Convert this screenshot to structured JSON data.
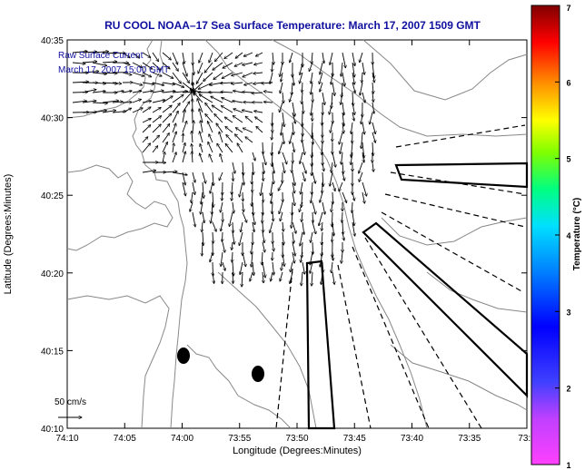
{
  "title": "RU COOL  NOAA–17  Sea Surface Temperature:  March 17, 2007 1509 GMT",
  "legend_text": {
    "line1": "Raw Surface Current",
    "line2": "March 17, 2007 15:00 GMT"
  },
  "scale_label": "50 cm/s",
  "xlabel": "Longitude (Degrees:Minutes)",
  "ylabel": "Latitude (Degrees:Minutes)",
  "x_ticks": [
    "74:10",
    "74:05",
    "74:00",
    "73:55",
    "73:50",
    "73:45",
    "73:40",
    "73:35",
    "73:3"
  ],
  "y_ticks": [
    "40:35",
    "40:30",
    "40:25",
    "40:20",
    "40:15",
    "40:10"
  ],
  "colorbar": {
    "label": "Temperature (°C)",
    "ticks": [
      "1",
      "2",
      "3",
      "4",
      "5",
      "6",
      "7"
    ],
    "min": 1,
    "max": 7
  },
  "colors": {
    "title": "#1010a0",
    "legend_text": "#1010a0",
    "land_contour": "#888888"
  }
}
